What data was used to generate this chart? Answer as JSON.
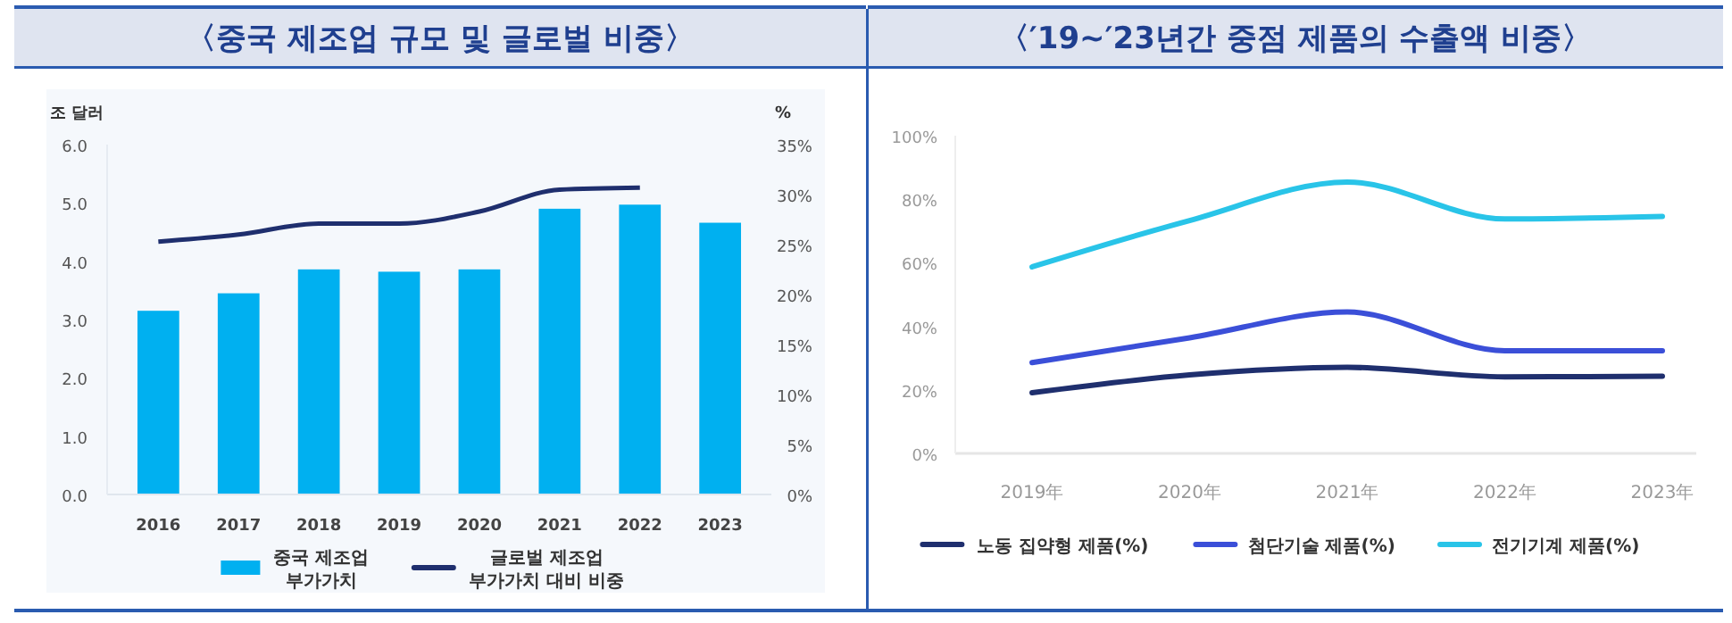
{
  "chart_data": [
    {
      "type": "bar",
      "title": "〈중국 제조업 규모 및 글로벌 비중〉",
      "ylabel": "조 달러",
      "y2label": "%",
      "categories": [
        "2016",
        "2017",
        "2018",
        "2019",
        "2020",
        "2021",
        "2022",
        "2023"
      ],
      "series": [
        {
          "name": "중국 제조업 부가가치",
          "type": "bar",
          "color": "#00b0f0",
          "values": [
            3.15,
            3.45,
            3.86,
            3.82,
            3.86,
            4.9,
            4.97,
            4.66
          ]
        },
        {
          "name": "글로벌 제조업 부가가치 대비 비중",
          "type": "line",
          "axis": "y2",
          "color": "#1f2f6e",
          "values": [
            25.3,
            26.0,
            27.1,
            27.1,
            28.3,
            30.5,
            30.7,
            null
          ]
        }
      ],
      "ylim": [
        0,
        6
      ],
      "yticks": [
        {
          "value": 0,
          "label": "0.0"
        },
        {
          "value": 1,
          "label": "1.0"
        },
        {
          "value": 2,
          "label": "2.0"
        },
        {
          "value": 3,
          "label": "3.0"
        },
        {
          "value": 4,
          "label": "4.0"
        },
        {
          "value": 5,
          "label": "5.0"
        },
        {
          "value": 6,
          "label": "6.0"
        }
      ],
      "y2lim": [
        0,
        35
      ],
      "y2ticks": [
        {
          "value": 0,
          "label": "0%"
        },
        {
          "value": 5,
          "label": "5%"
        },
        {
          "value": 10,
          "label": "10%"
        },
        {
          "value": 15,
          "label": "15%"
        },
        {
          "value": 20,
          "label": "20%"
        },
        {
          "value": 25,
          "label": "25%"
        },
        {
          "value": 30,
          "label": "30%"
        },
        {
          "value": 35,
          "label": "35%"
        }
      ],
      "legend": "bottom",
      "grid": false
    },
    {
      "type": "line",
      "title": "〈′19~′23년간 중점 제품의 수출액 비중〉",
      "categories": [
        "2019年",
        "2020年",
        "2021年",
        "2022年",
        "2023年"
      ],
      "series": [
        {
          "name": "노동 집약형 제품(%)",
          "color": "#1f2f6e",
          "values": [
            19.1,
            24.7,
            27.1,
            24.1,
            24.3
          ]
        },
        {
          "name": "첨단기술 제품(%)",
          "color": "#3b4fd8",
          "values": [
            28.6,
            36.4,
            44.5,
            32.3,
            32.3
          ]
        },
        {
          "name": "전기기계 제품(%)",
          "color": "#29c4e8",
          "values": [
            58.7,
            73.3,
            85.4,
            73.8,
            74.6
          ]
        }
      ],
      "ylim": [
        0,
        100
      ],
      "yticks": [
        {
          "value": 0,
          "label": "0%"
        },
        {
          "value": 20,
          "label": "20%"
        },
        {
          "value": 40,
          "label": "40%"
        },
        {
          "value": 60,
          "label": "60%"
        },
        {
          "value": 80,
          "label": "80%"
        },
        {
          "value": 100,
          "label": "100%"
        }
      ],
      "legend": "bottom",
      "grid": false,
      "marker": "none",
      "line_style": "solid"
    }
  ]
}
